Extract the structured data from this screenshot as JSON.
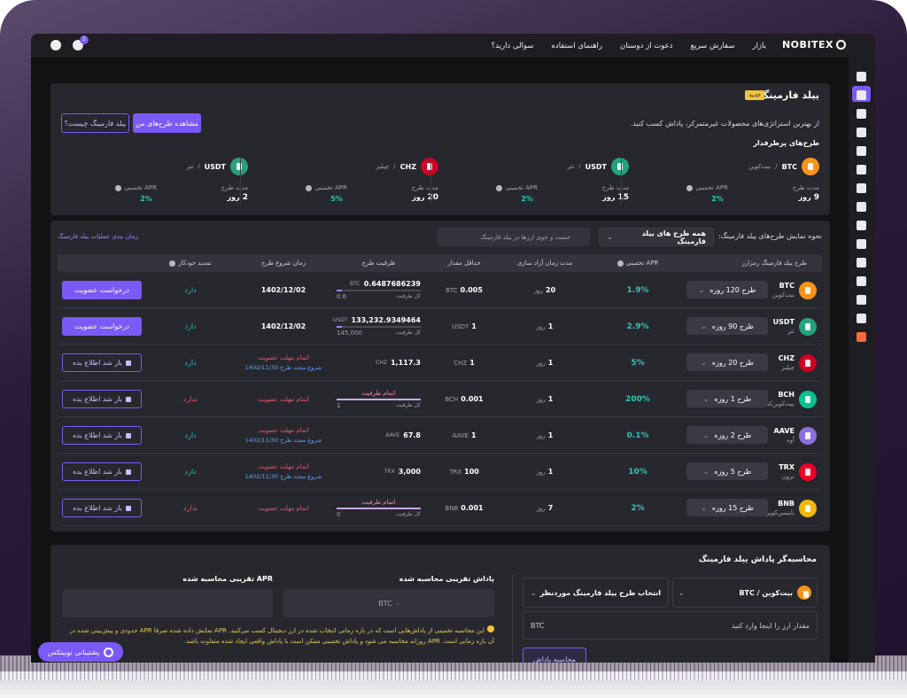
{
  "nav": {
    "brand": "NOBITEX",
    "links": [
      "بازار",
      "سفارش سریع",
      "دعوت از دوستان",
      "راهنمای استفاده",
      "سوالی دارید؟"
    ],
    "badge": "2"
  },
  "units": {
    "day": "روز"
  },
  "hero": {
    "title": "ییلد فارمینگ",
    "tag": "جدید",
    "subtitle": "از بهترین استراتژی‌های محصولات غیرمتمرکز، پاداش کسب کنید.",
    "buttons": [
      "مشاهده طرح‌های من",
      "ییلد فارمینگ چیست؟"
    ],
    "popular_title": "طرح‌های پرطرفدار",
    "duration_label": "مدت طرح",
    "apr_label": "APR تخمینی",
    "popular": [
      {
        "coin": "BTC",
        "name": "بیت‌کوین",
        "duration": "9",
        "apr": "2%",
        "color": "#f7931a"
      },
      {
        "coin": "USDT",
        "name": "تتر",
        "duration": "15",
        "apr": "2%",
        "color": "#26a17b"
      },
      {
        "coin": "CHZ",
        "name": "چیلیز",
        "duration": "20",
        "apr": "5%",
        "color": "#cd0124"
      },
      {
        "coin": "USDT",
        "name": "تتر",
        "duration": "2",
        "apr": "2%",
        "color": "#26a17b"
      }
    ]
  },
  "filter": {
    "label": "نحوه نمایش طرح‌های ییلد فارمینگ:",
    "select": "همه طرح های ییلد فارمینگ",
    "search": "جست و جوی ارزها در ییلد فارمینگ",
    "link": "زمان بندی عملیات ییلد فارمینگ"
  },
  "table": {
    "headers": [
      "طرح ییلد فارمینگ رمزارز",
      "APR تخمینی",
      "مدت زمان آزاد سازی",
      "حداقل مقدار",
      "ظرفیت طرح",
      "زمان شروع طرح",
      "تمدید خودکار"
    ],
    "total_label": "کل ظرفیت",
    "rows": [
      {
        "coin": "BTC",
        "name": "بیت‌کوین",
        "color": "#f7931a",
        "plan": "طرح 120 روزه",
        "apr": "1.9%",
        "release": "20",
        "min": "0.005",
        "cap_value": "0.6487686239",
        "cap_total": "0.6",
        "start": "1402/12/02",
        "auto": "دارد",
        "auto_color": "#2cc6b4",
        "action": "درخواست عضویت",
        "action_style": "primary"
      },
      {
        "coin": "USDT",
        "name": "تتر",
        "color": "#26a17b",
        "plan": "طرح 90 روزه",
        "apr": "2.9%",
        "release": "1",
        "min": "1",
        "cap_value": "133,232.9349464",
        "cap_total": "145,000",
        "start": "1402/12/02",
        "auto": "دارد",
        "auto_color": "#2cc6b4",
        "action": "درخواست عضویت",
        "action_style": "primary"
      },
      {
        "coin": "CHZ",
        "name": "چیلیز",
        "color": "#cd0124",
        "plan": "طرح 20 روزه",
        "apr": "5%",
        "release": "1",
        "min": "1",
        "cap_value": "1,117.3",
        "start_status": "اتمام مهلت عضویت",
        "renew": "شروع مجدد طرح 1402/11/30",
        "auto": "دارد",
        "auto_color": "#2cc6b4",
        "action": "باز شد اطلاع بده",
        "action_style": "outline"
      },
      {
        "coin": "BCH",
        "name": "بیت‌کوین‌کش",
        "color": "#0ac18e",
        "plan": "طرح 1 روزه",
        "apr": "200%",
        "release": "1",
        "min": "0.001",
        "cap_status": "اتمام ظرفیت",
        "cap_total": "1",
        "start_status": "اتمام مهلت عضویت",
        "auto": "ندارد",
        "auto_color": "#e8576a",
        "action": "باز شد اطلاع بده",
        "action_style": "outline"
      },
      {
        "coin": "AAVE",
        "name": "آوه",
        "color": "#8b6fe0",
        "plan": "طرح 2 روزه",
        "apr": "0.1%",
        "release": "1",
        "min": "1",
        "cap_value": "67.8",
        "start_status": "اتمام مهلت عضویت",
        "renew": "شروع مجدد طرح 1402/11/30",
        "auto": "دارد",
        "auto_color": "#2cc6b4",
        "action": "باز شد اطلاع بده",
        "action_style": "outline"
      },
      {
        "coin": "TRX",
        "name": "ترون",
        "color": "#eb0029",
        "plan": "طرح 5 روزه",
        "apr": "10%",
        "release": "1",
        "min": "100",
        "cap_value": "3,000",
        "start_status": "اتمام مهلت عضویت",
        "renew": "شروع مجدد طرح 1402/11/30",
        "auto": "دارد",
        "auto_color": "#2cc6b4",
        "action": "باز شد اطلاع بده",
        "action_style": "outline"
      },
      {
        "coin": "BNB",
        "name": "بایننس‌کوین",
        "color": "#f0b90b",
        "plan": "طرح 15 روزه",
        "apr": "2%",
        "release": "7",
        "min": "0.001",
        "cap_status": "اتمام ظرفیت",
        "cap_total": "0",
        "start_status": "اتمام مهلت عضویت",
        "auto": "ندارد",
        "auto_color": "#e8576a",
        "action": "باز شد اطلاع بده",
        "action_style": "outline"
      }
    ]
  },
  "calculator": {
    "title": "محاسبه‌گر پاداش ییلد فارمینگ",
    "coin_select": "بیت‌کوین / BTC",
    "plan_select": "انتخاب طرح ییلد فارمینگ موردنظر",
    "input_placeholder": "مقدار ارز را اینجا وارد کنید",
    "input_unit": "BTC",
    "button": "محاسبه پاداش",
    "reward_label": "پاداش تقریبی محاسبه شده",
    "reward_value": "-",
    "reward_unit": "BTC",
    "apr_label": "APR تقریبی محاسبه شده",
    "note": "این محاسبه تخمینی از پاداش‌هایی است که در بازه زمانی انتخاب شده در ارز دیجیتال کسب می‌کنید. APR نمایش داده شده صرفا APR حدودی و پیش‌بینی شده در آن بازه زمانی است. APR روزانه محاسبه می شود و پاداش تخمینی ممکن است با پاداش واقعی ایجاد شده متفاوت باشد."
  },
  "support": "پشتیبانی نوبیتکس"
}
